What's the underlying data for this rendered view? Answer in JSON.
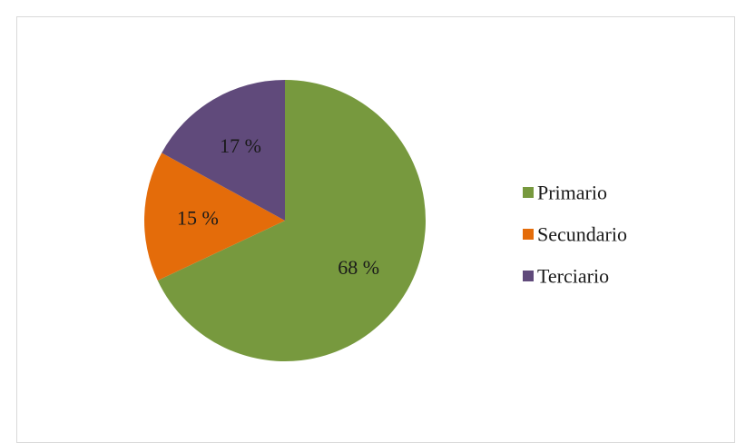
{
  "chart_data": {
    "type": "pie",
    "categories": [
      "Primario",
      "Secundario",
      "Terciario"
    ],
    "values": [
      68,
      15,
      17
    ],
    "labels": [
      "68 %",
      "15 %",
      "17 %"
    ],
    "colors": [
      "#77993e",
      "#e46c0a",
      "#604a7b"
    ],
    "legend_position": "right",
    "start": "top",
    "direction": "clockwise"
  }
}
